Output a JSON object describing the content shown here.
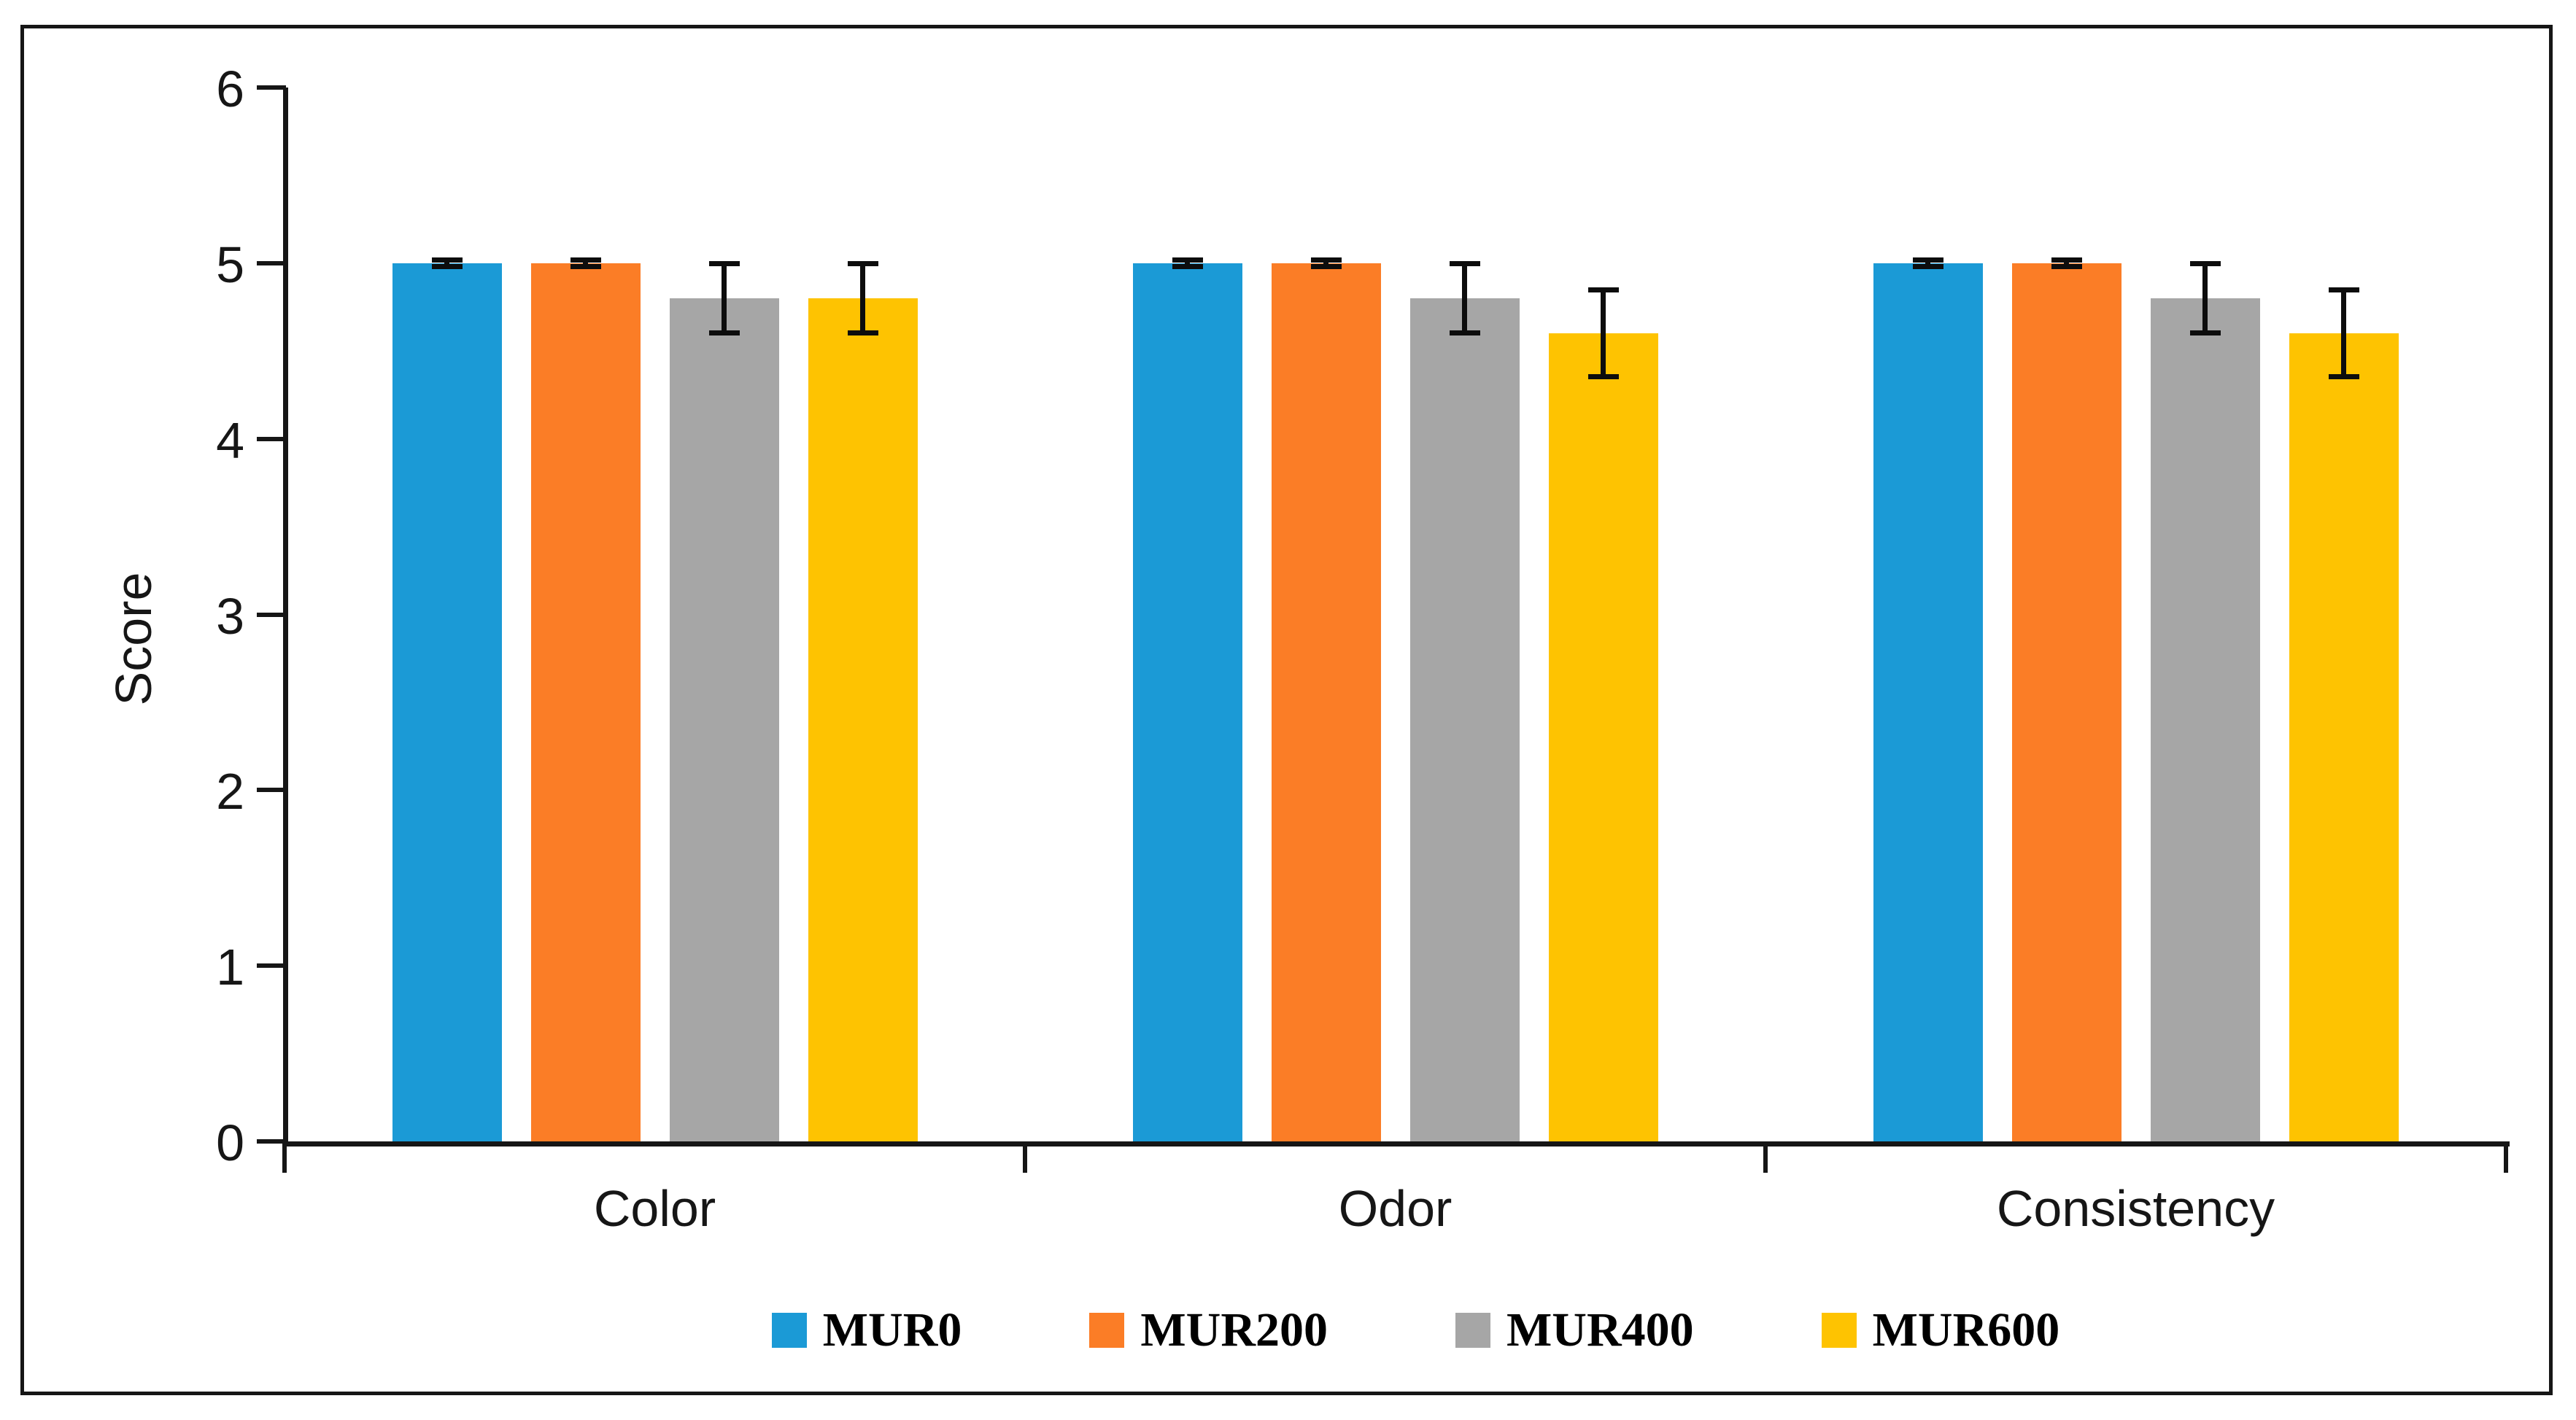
{
  "chart_data": {
    "type": "bar",
    "title": "",
    "xlabel": "",
    "ylabel": "Score",
    "categories": [
      "Color",
      "Odor",
      "Consistency"
    ],
    "series": [
      {
        "name": "MUR0",
        "color": "#1B9AD6",
        "values": [
          5.0,
          5.0,
          5.0
        ],
        "errors": [
          0.02,
          0.02,
          0.02
        ]
      },
      {
        "name": "MUR200",
        "color": "#FB7D26",
        "values": [
          5.0,
          5.0,
          5.0
        ],
        "errors": [
          0.02,
          0.02,
          0.02
        ]
      },
      {
        "name": "MUR400",
        "color": "#A6A6A6",
        "values": [
          4.8,
          4.8,
          4.8
        ],
        "errors": [
          0.2,
          0.2,
          0.2
        ]
      },
      {
        "name": "MUR600",
        "color": "#FEC301",
        "values": [
          4.8,
          4.6,
          4.6
        ],
        "errors": [
          0.2,
          0.25,
          0.25
        ]
      }
    ],
    "yaxis": {
      "min": 0,
      "max": 6,
      "step": 1,
      "tick_labels": [
        "0",
        "1",
        "2",
        "3",
        "4",
        "5",
        "6"
      ]
    },
    "error_bars": true,
    "grid": false,
    "legend_position": "bottom"
  },
  "colors": {
    "axis": "#161616",
    "error_bar": "#0d0d0d",
    "frame_border": "#161616",
    "background": "#ffffff"
  }
}
